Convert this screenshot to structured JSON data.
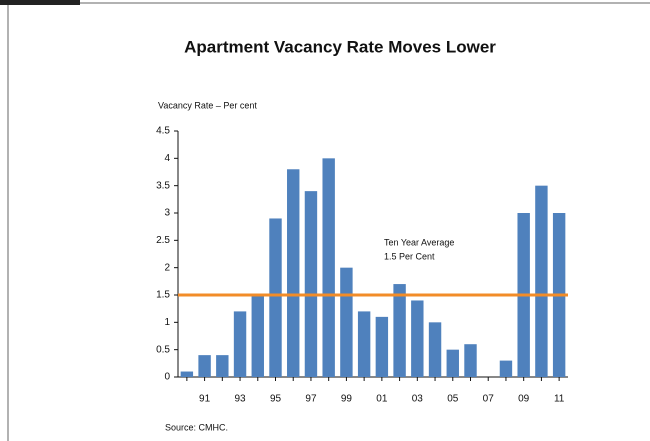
{
  "chart_data": {
    "type": "bar",
    "title": "Apartment Vacancy Rate Moves Lower",
    "y_label": "Vacancy Rate – Per cent",
    "source": "Source: CMHC.",
    "categories": [
      null,
      "91",
      null,
      "93",
      null,
      "95",
      null,
      "97",
      null,
      "99",
      null,
      "01",
      null,
      "03",
      null,
      "05",
      null,
      "07",
      null,
      "09",
      null,
      "11"
    ],
    "values": [
      0.1,
      0.4,
      0.4,
      1.2,
      1.5,
      2.9,
      3.8,
      3.4,
      4.0,
      2.0,
      1.2,
      1.1,
      1.7,
      1.4,
      1.0,
      0.5,
      0.6,
      0,
      0.3,
      3.0,
      3.5,
      3.0
    ],
    "color": "#4f81bd",
    "ylim": [
      0,
      4.5
    ],
    "yticks": [
      0,
      0.5,
      1,
      1.5,
      2,
      2.5,
      3,
      3.5,
      4,
      4.5
    ],
    "reference_line": {
      "value": 1.5,
      "color": "#f28c28",
      "annotation": [
        "Ten Year Average",
        "1.5 Per Cent"
      ]
    }
  }
}
